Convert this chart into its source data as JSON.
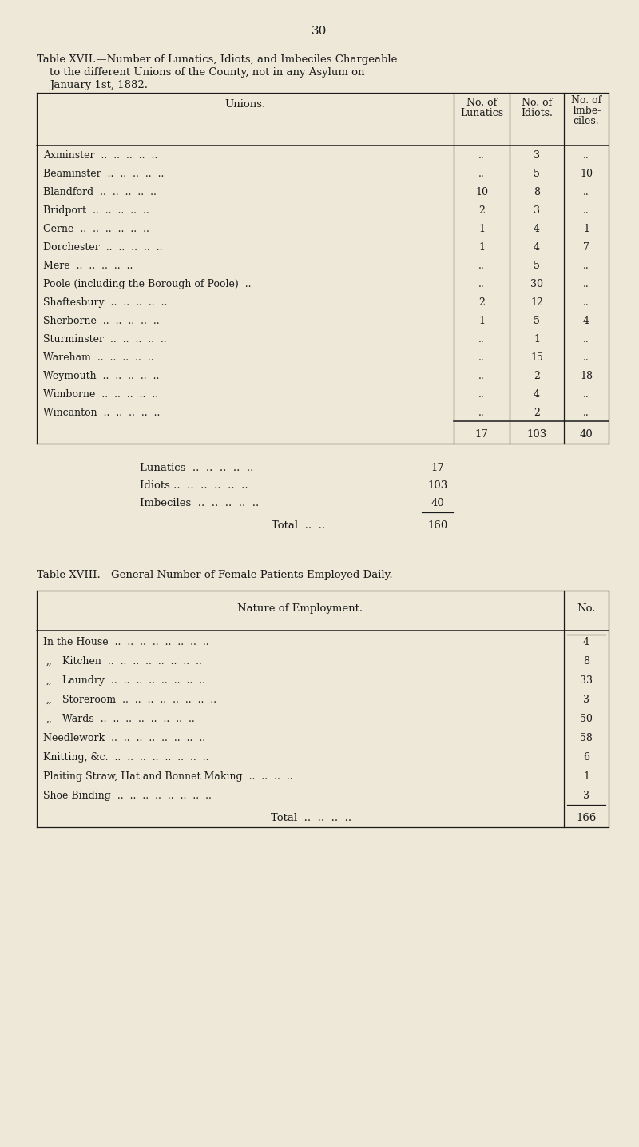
{
  "page_number": "30",
  "bg_color": "#ede8d8",
  "text_color": "#1a1a1a",
  "table17_title_line1": "Table XVII.—Number of Lunatics, Idiots, and Imbeciles Chargeable",
  "table17_title_line2": "to the different Unions of the County, not in any Asylum on",
  "table17_title_line3": "January 1st, 1882.",
  "table17_rows": [
    [
      "Axminster",
      "",
      "3",
      ""
    ],
    [
      "Beaminster",
      "",
      "5",
      "10"
    ],
    [
      "Blandford",
      "10",
      "8",
      ""
    ],
    [
      "Bridport",
      "2",
      "3",
      ""
    ],
    [
      "Cerne",
      "1",
      "4",
      "1"
    ],
    [
      "Dorchester",
      "1",
      "4",
      "7"
    ],
    [
      "Mere",
      "",
      "5",
      ""
    ],
    [
      "Poole (including the Borough of Poole)",
      "",
      "30",
      ""
    ],
    [
      "Shaftesbury",
      "2",
      "12",
      ""
    ],
    [
      "Sherborne",
      "1",
      "5",
      "4"
    ],
    [
      "Sturminster",
      "",
      "1",
      ""
    ],
    [
      "Wareham",
      "",
      "15",
      ""
    ],
    [
      "Weymouth",
      "",
      "2",
      "18"
    ],
    [
      "Wimborne",
      "",
      "4",
      ""
    ],
    [
      "Wincanton",
      "",
      "2",
      ""
    ]
  ],
  "table17_totals": [
    "17",
    "103",
    "40"
  ],
  "table17_sum_labels": [
    "Lunatics",
    "Idiots ..",
    "Imbeciles"
  ],
  "table17_sum_values": [
    "17",
    "103",
    "40"
  ],
  "table17_total_value": "160",
  "table18_rows": [
    [
      "In the House",
      "4"
    ],
    [
      ",, Kitchen",
      "8"
    ],
    [
      ",, Laundry",
      "33"
    ],
    [
      ",, Storeroom",
      "3"
    ],
    [
      ",, Wards",
      "50"
    ],
    [
      "Needlework",
      "58"
    ],
    [
      "Knitting, &c.",
      "6"
    ],
    [
      "Plaiting Straw, Hat and Bonnet Making",
      "1"
    ],
    [
      "Shoe Binding",
      "3"
    ]
  ],
  "table18_total_value": "166"
}
